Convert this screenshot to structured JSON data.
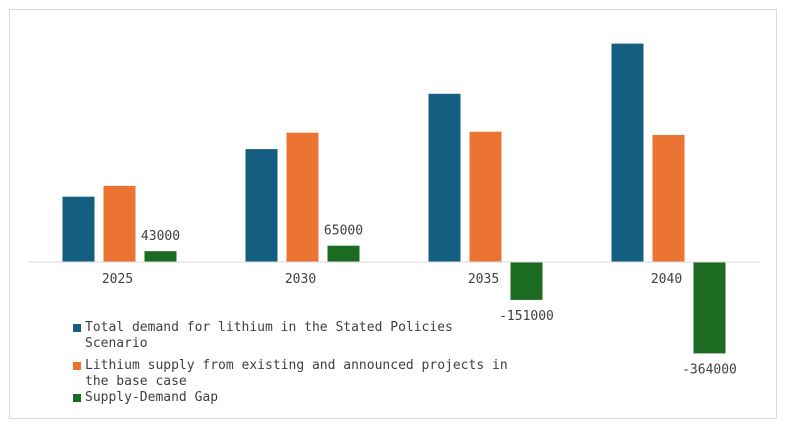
{
  "chart_data": {
    "type": "bar",
    "categories": [
      "2025",
      "2030",
      "2035",
      "2040"
    ],
    "series": [
      {
        "name": "Total demand for lithium in the Stated Policies Scenario",
        "color": "#145e82",
        "values": [
          260000,
          450000,
          670000,
          870000
        ],
        "show_labels": false
      },
      {
        "name": "Lithium supply from existing and announced projects in the base case",
        "color": "#eb7432",
        "values": [
          303000,
          515000,
          519000,
          506000
        ],
        "show_labels": false
      },
      {
        "name": "Supply-Demand Gap",
        "color": "#1b6b22",
        "values": [
          43000,
          65000,
          -151000,
          -364000
        ],
        "labels": [
          "43000",
          "65000",
          "-151000",
          "-364000"
        ],
        "show_labels": true
      }
    ],
    "ylim": [
      -450000,
      950000
    ],
    "grid": false,
    "legend_position": "bottom-left"
  }
}
